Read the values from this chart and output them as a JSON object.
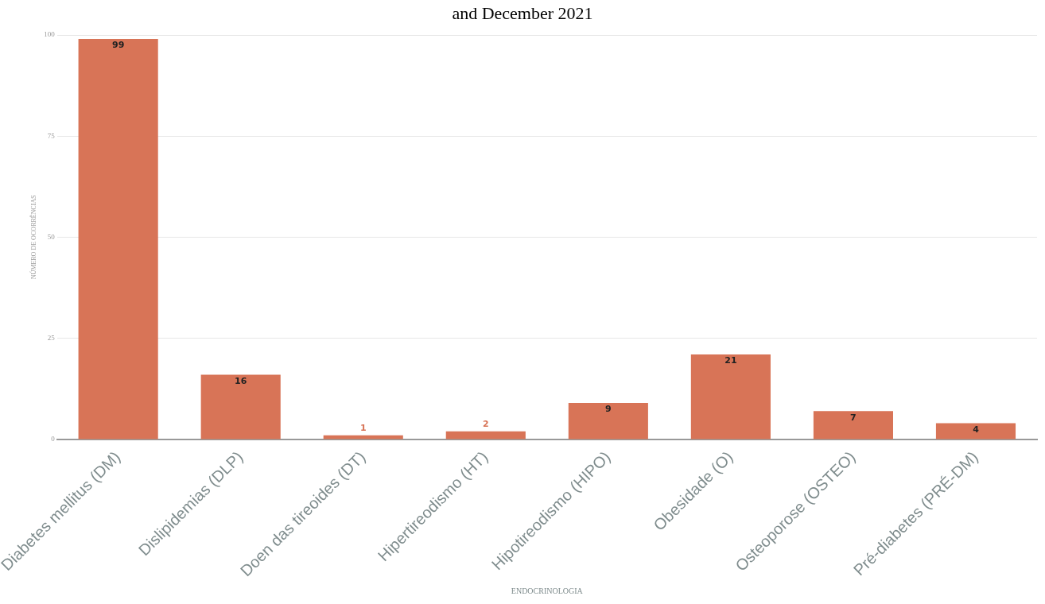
{
  "chart_data": {
    "type": "bar",
    "title": "and December 2021",
    "xlabel": "ENDOCRINOLOGIA",
    "ylabel": "NÚMERO DE OCORRÊNCIAS",
    "categories": [
      "Diabetes mellitus (DM)",
      "Dislipidemias (DLP)",
      "Doen das tireoides (DT)",
      "Hipertireodismo (HT)",
      "Hipotireodismo (HIPO)",
      "Obesidade (O)",
      "Osteoporose (OSTEO)",
      "Pré-diabetes (PRÉ-DM)"
    ],
    "values": [
      99,
      16,
      1,
      2,
      9,
      21,
      7,
      4
    ],
    "color": "#d87457",
    "ylim": [
      0,
      100
    ],
    "yticks": [
      0,
      25,
      50,
      75,
      100
    ],
    "grid": "y",
    "data_labels": true
  }
}
